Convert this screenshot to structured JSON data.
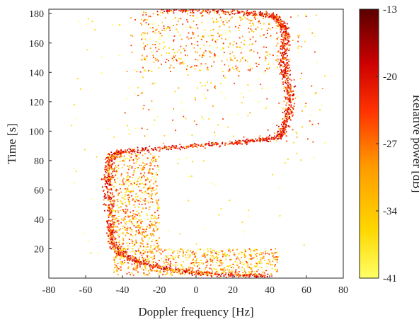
{
  "chart_data": {
    "type": "scatter",
    "title": "",
    "xlabel": "Doppler frequency [Hz]",
    "ylabel": "Time [s]",
    "xlim": [
      -80,
      80
    ],
    "ylim": [
      0,
      183
    ],
    "xticks": [
      -80,
      -60,
      -40,
      -20,
      0,
      20,
      40,
      60,
      80
    ],
    "yticks": [
      20,
      40,
      60,
      80,
      100,
      120,
      140,
      160,
      180
    ],
    "grid": false,
    "colorbar": {
      "label": "Relative power [dB]",
      "range": [
        -41,
        -13
      ],
      "ticks": [
        -13,
        -20,
        -27,
        -34,
        -41
      ],
      "colormap": "autumn-to-dark-red",
      "colors": [
        "#ffff66",
        "#ffd700",
        "#ff9900",
        "#ff3300",
        "#cc0000",
        "#5a0000"
      ]
    },
    "series": [
      {
        "description_of_trace": "S-shaped Doppler trace",
        "curve": [
          [
            40,
            1
          ],
          [
            22,
            2
          ],
          [
            5,
            3
          ],
          [
            -10,
            5
          ],
          [
            -22,
            8
          ],
          [
            -33,
            12
          ],
          [
            -41,
            17
          ],
          [
            -45,
            24
          ],
          [
            -46,
            35
          ],
          [
            -47,
            50
          ],
          [
            -48,
            65
          ],
          [
            -47,
            75
          ],
          [
            -46,
            83
          ],
          [
            -40,
            86
          ],
          [
            -20,
            88
          ],
          [
            0,
            90
          ],
          [
            20,
            92
          ],
          [
            35,
            94
          ],
          [
            45,
            96
          ],
          [
            48,
            102
          ],
          [
            50,
            112
          ],
          [
            51,
            122
          ],
          [
            50,
            132
          ],
          [
            48,
            142
          ],
          [
            47,
            152
          ],
          [
            49,
            162
          ],
          [
            48,
            170
          ],
          [
            45,
            176
          ],
          [
            40,
            179
          ],
          [
            25,
            181
          ],
          [
            5,
            182
          ],
          [
            -20,
            182
          ]
        ],
        "scatter_regions": [
          {
            "x": [
              -45,
              45
            ],
            "y": [
              2,
              20
            ],
            "density": "high"
          },
          {
            "x": [
              -48,
              -20
            ],
            "y": [
              20,
              85
            ],
            "density": "high"
          },
          {
            "x": [
              -30,
              45
            ],
            "y": [
              140,
              182
            ],
            "density": "medium"
          },
          {
            "x": [
              -40,
              70
            ],
            "y": [
              90,
              180
            ],
            "density": "low"
          }
        ]
      }
    ]
  }
}
